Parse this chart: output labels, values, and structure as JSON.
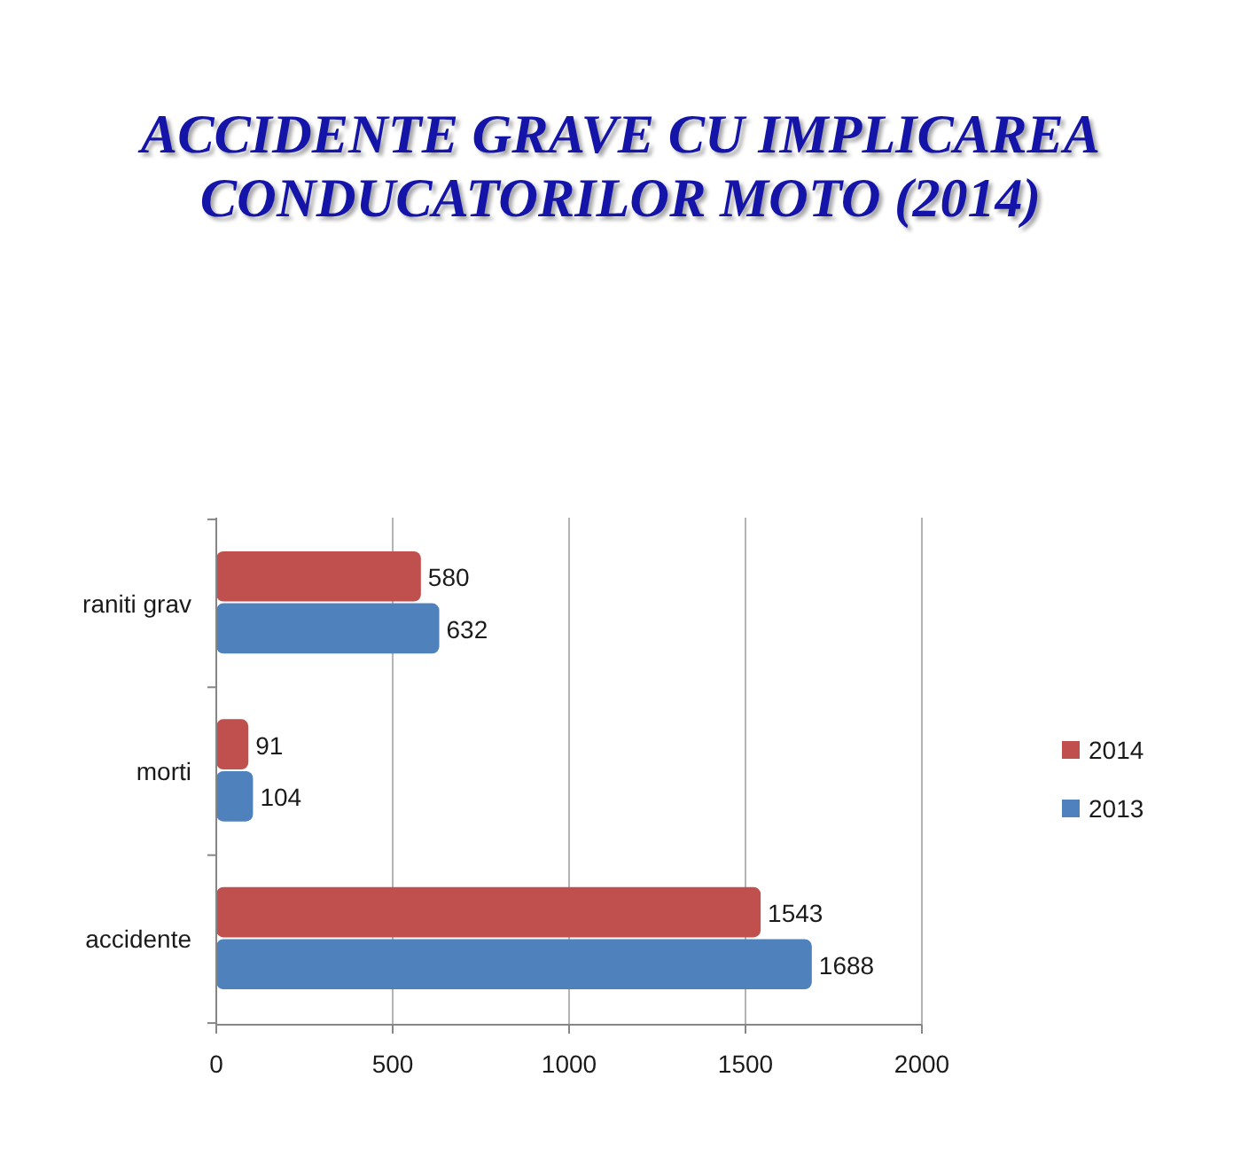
{
  "chart_data": {
    "type": "bar",
    "orientation": "horizontal",
    "title": "ACCIDENTE GRAVE CU IMPLICAREA CONDUCATORILOR MOTO (2014)",
    "categories": [
      "raniti grav",
      "morti",
      "accidente"
    ],
    "series": [
      {
        "name": "2014",
        "color": "#c0504d",
        "values": [
          580,
          91,
          1543
        ]
      },
      {
        "name": "2013",
        "color": "#4f81bd",
        "values": [
          632,
          104,
          1688
        ]
      }
    ],
    "xlim": [
      0,
      2000
    ],
    "xticks": [
      0,
      500,
      1000,
      1500,
      2000
    ],
    "grid": "x",
    "legend": "right",
    "data_labels": true
  }
}
